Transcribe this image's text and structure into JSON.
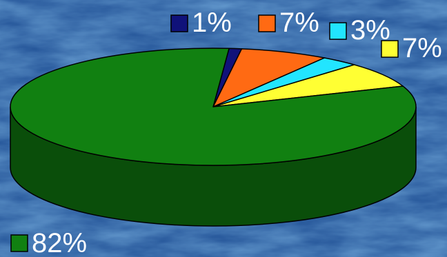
{
  "chart_data": {
    "type": "pie",
    "style": "3d",
    "background": "#2a5a9e",
    "slices": [
      {
        "label": "1%",
        "value": 1,
        "color": "#10127a",
        "side_color": "#0a0c55"
      },
      {
        "label": "7%",
        "value": 7,
        "color": "#ff6a13",
        "side_color": "#b34a0d"
      },
      {
        "label": "3%",
        "value": 3,
        "color": "#22e5ff",
        "side_color": "#179fb2"
      },
      {
        "label": "7%",
        "value": 7,
        "color": "#ffff33",
        "side_color": "#b2b224"
      },
      {
        "label": "82%",
        "value": 82,
        "color": "#118011",
        "side_color": "#0a4e0a"
      }
    ]
  }
}
